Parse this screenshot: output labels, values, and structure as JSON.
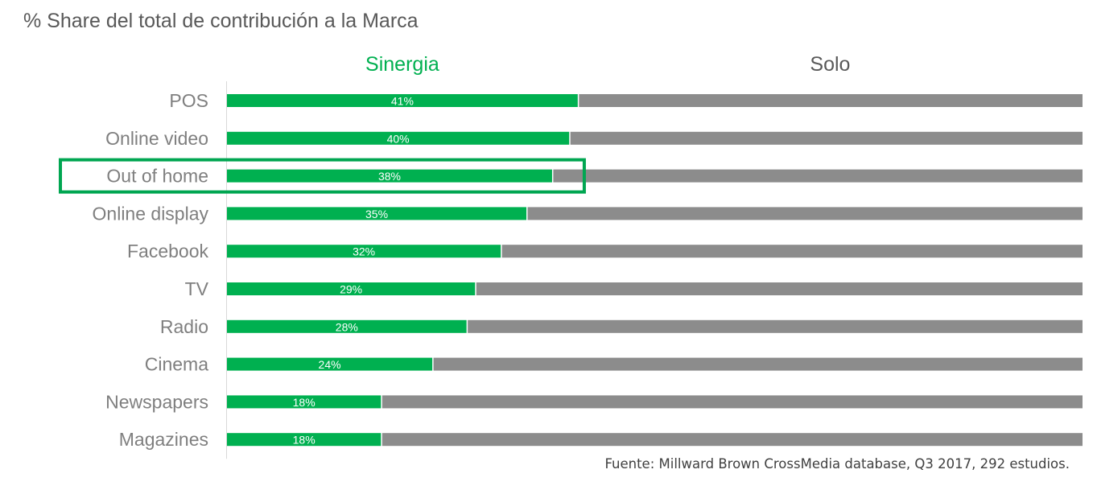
{
  "chart_data": {
    "type": "bar",
    "orientation": "horizontal",
    "stacked": true,
    "normalized": true,
    "title": "% Share del total de contribución a la Marca",
    "categories": [
      "POS",
      "Online video",
      "Out of home",
      "Online display",
      "Facebook",
      "TV",
      "Radio",
      "Cinema",
      "Newspapers",
      "Magazines"
    ],
    "series": [
      {
        "name": "Sinergia",
        "color": "#00B050",
        "values": [
          41,
          40,
          38,
          35,
          32,
          29,
          28,
          24,
          18,
          18
        ],
        "labels": [
          "41%",
          "40%",
          "38%",
          "35%",
          "32%",
          "29%",
          "28%",
          "24%",
          "18%",
          "18%"
        ]
      },
      {
        "name": "Solo",
        "color": "#8C8C8C",
        "values": [
          59,
          60,
          62,
          65,
          68,
          71,
          72,
          76,
          82,
          82
        ]
      }
    ],
    "xlim": [
      0,
      100
    ],
    "grid": false,
    "legend_position": "top",
    "highlight": {
      "category": "Out of home",
      "color": "#00A651"
    }
  },
  "source": "Fuente: Millward Brown CrossMedia database, Q3 2017, 292 estudios."
}
